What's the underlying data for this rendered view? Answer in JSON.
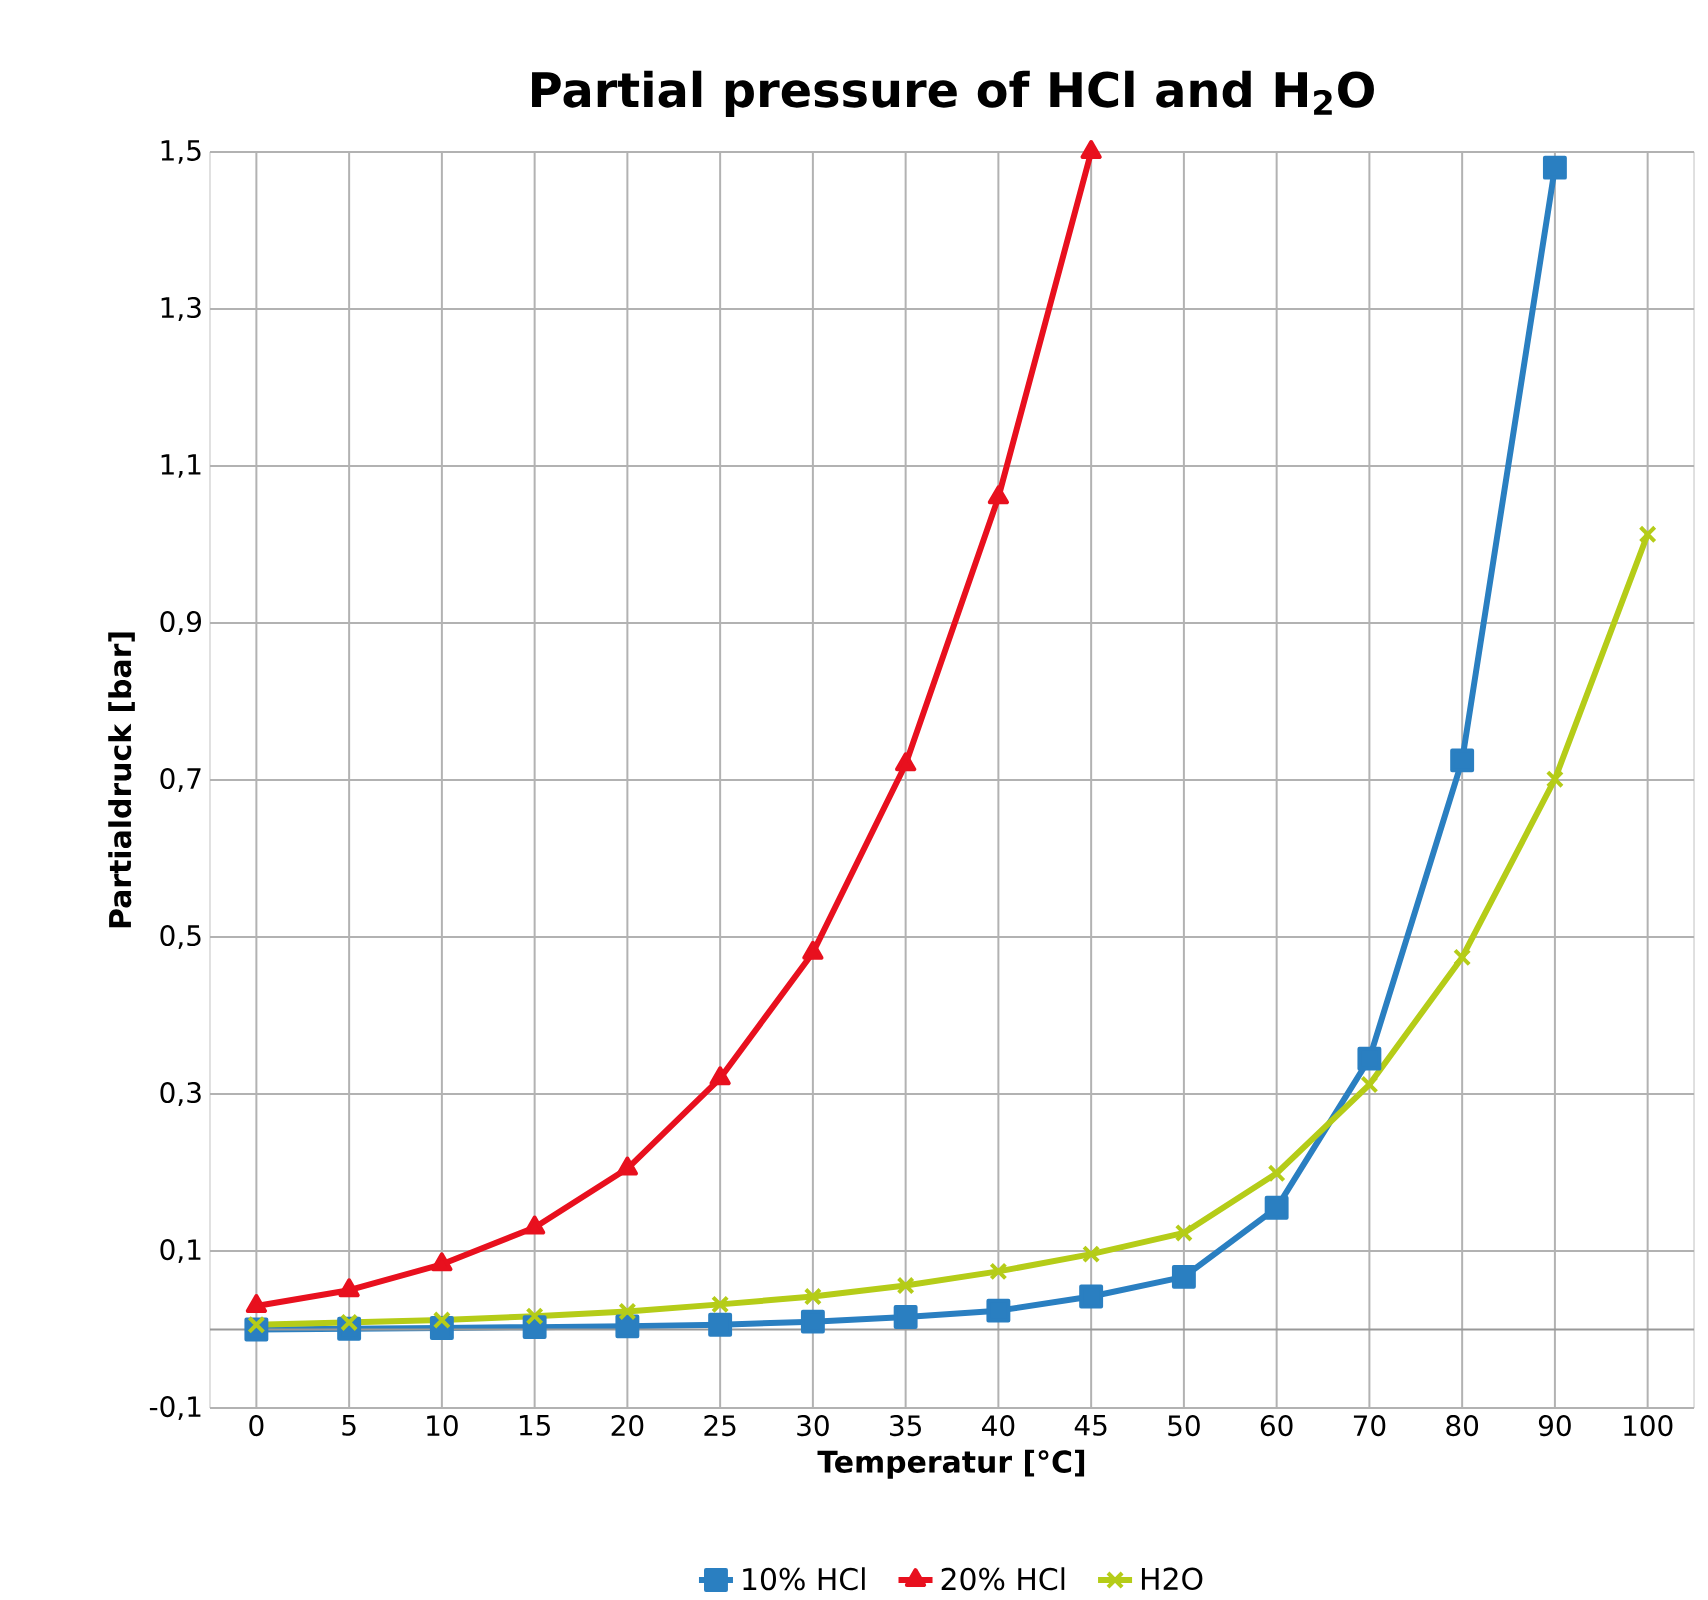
{
  "chart_data": {
    "type": "line",
    "title": "Partial pressure of HCl and H$_{2}$O",
    "xlabel": "Temperatur [°C]",
    "ylabel": "Partialdruck [bar]",
    "categories": [
      "0",
      "5",
      "10",
      "15",
      "20",
      "25",
      "30",
      "35",
      "40",
      "45",
      "50",
      "60",
      "70",
      "80",
      "90",
      "100"
    ],
    "series": [
      {
        "name": "10% HCl",
        "color": "#2a7fc1",
        "marker": "square",
        "values": [
          0.0,
          0.001,
          0.002,
          0.003,
          0.004,
          0.006,
          0.01,
          0.016,
          0.024,
          0.042,
          0.067,
          0.155,
          0.345,
          0.725,
          1.48,
          null
        ]
      },
      {
        "name": "20% HCl",
        "color": "#e8101e",
        "marker": "triangle",
        "values": [
          0.03,
          0.05,
          0.083,
          0.13,
          0.205,
          0.32,
          0.48,
          0.72,
          1.06,
          1.5,
          null,
          null,
          null,
          null,
          null,
          null
        ]
      },
      {
        "name": "H2O",
        "color": "#b5cc18",
        "marker": "cross",
        "values": [
          0.006,
          0.009,
          0.012,
          0.017,
          0.023,
          0.032,
          0.042,
          0.056,
          0.074,
          0.096,
          0.123,
          0.199,
          0.312,
          0.474,
          0.701,
          1.013
        ]
      }
    ],
    "ylim": [
      -0.1,
      1.5
    ],
    "yticks": [
      {
        "value": -0.1,
        "label": "-0,1"
      },
      {
        "value": 0.1,
        "label": "0,1"
      },
      {
        "value": 0.3,
        "label": "0,3"
      },
      {
        "value": 0.5,
        "label": "0,5"
      },
      {
        "value": 0.7,
        "label": "0,7"
      },
      {
        "value": 0.9,
        "label": "0,9"
      },
      {
        "value": 1.1,
        "label": "1,1"
      },
      {
        "value": 1.3,
        "label": "1,3"
      },
      {
        "value": 1.5,
        "label": "1,5"
      }
    ],
    "grid": true,
    "legend": "bottom",
    "line_style": "solid"
  }
}
